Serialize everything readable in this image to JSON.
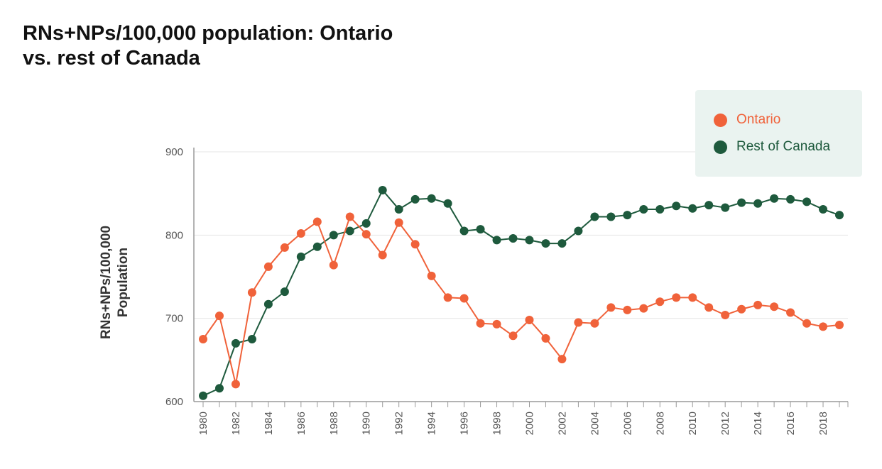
{
  "title_line1": "RNs+NPs/100,000 population: Ontario",
  "title_line2": "vs. rest of Canada",
  "chart_data": {
    "type": "line",
    "title": "RNs+NPs/100,000 population: Ontario vs. rest of Canada",
    "ylabel_line1": "RNs+NPs/100,000",
    "ylabel_line2": "Population",
    "xlabel": "",
    "ylim": [
      600,
      900
    ],
    "yticks": [
      600,
      700,
      800,
      900
    ],
    "xlim": [
      1980,
      2019
    ],
    "xticks": [
      1980,
      1982,
      1984,
      1986,
      1988,
      1990,
      1992,
      1994,
      1996,
      1998,
      2000,
      2002,
      2004,
      2006,
      2008,
      2010,
      2012,
      2014,
      2016,
      2018
    ],
    "grid": "horizontal",
    "legend_position": "top-right",
    "x": [
      1980,
      1981,
      1982,
      1983,
      1984,
      1985,
      1986,
      1987,
      1988,
      1989,
      1990,
      1991,
      1992,
      1993,
      1994,
      1995,
      1996,
      1997,
      1998,
      1999,
      2000,
      2001,
      2002,
      2003,
      2004,
      2005,
      2006,
      2007,
      2008,
      2009,
      2010,
      2011,
      2012,
      2013,
      2014,
      2015,
      2016,
      2017,
      2018,
      2019
    ],
    "series": [
      {
        "name": "Ontario",
        "color": "#f0623a",
        "values": [
          675,
          703,
          621,
          731,
          762,
          785,
          802,
          816,
          764,
          822,
          801,
          776,
          815,
          789,
          751,
          725,
          724,
          694,
          693,
          679,
          698,
          676,
          651,
          695,
          694,
          713,
          710,
          712,
          720,
          725,
          725,
          713,
          704,
          711,
          716,
          714,
          707,
          694,
          690,
          692
        ]
      },
      {
        "name": "Rest of Canada",
        "color": "#1e5a3d",
        "values": [
          607,
          616,
          670,
          675,
          717,
          732,
          774,
          786,
          800,
          805,
          814,
          854,
          831,
          843,
          844,
          838,
          805,
          807,
          794,
          796,
          794,
          790,
          790,
          805,
          822,
          822,
          824,
          831,
          831,
          835,
          832,
          836,
          833,
          839,
          838,
          844,
          843,
          840,
          831,
          824
        ]
      }
    ]
  }
}
